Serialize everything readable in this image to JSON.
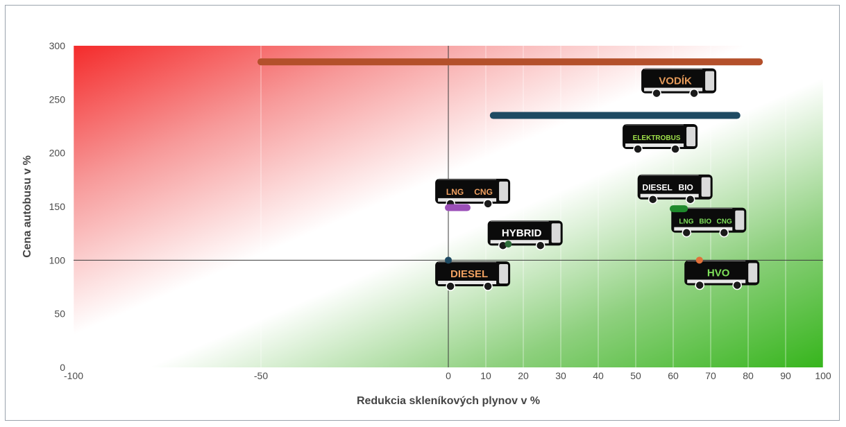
{
  "chart_data": {
    "type": "scatter",
    "xlabel": "Redukcia skleníkových plynov v %",
    "ylabel": "Cena autobusu v %",
    "xlim": [
      -100,
      100
    ],
    "ylim": [
      0,
      300
    ],
    "x_ticks": [
      -100,
      -50,
      0,
      10,
      20,
      30,
      40,
      50,
      60,
      70,
      80,
      90,
      100
    ],
    "y_ticks": [
      0,
      50,
      100,
      150,
      200,
      250,
      300
    ],
    "reference_lines": {
      "x": 0,
      "y": 100
    },
    "background": "gradient from red (top-left) through white to green (bottom-right)",
    "ranges": [
      {
        "label": "VODÍK",
        "x": [
          -50,
          83
        ],
        "y": 285,
        "color": "#b4502b"
      },
      {
        "label": "ELEKTROBUS",
        "x": [
          12,
          77
        ],
        "y": 235,
        "color": "#1e4a62"
      },
      {
        "label": "LNG CNG",
        "x": [
          0,
          5
        ],
        "y": 149,
        "color": "#9b4fb8"
      },
      {
        "label": "BIO LNG CNG",
        "x": [
          60,
          63
        ],
        "y": 148,
        "color": "#1f8a2c"
      }
    ],
    "points": [
      {
        "label": "DIESEL",
        "x": 0,
        "y": 100,
        "color": "#1e4a62"
      },
      {
        "label": "HYBRID",
        "x": 16,
        "y": 115,
        "color": "#2e6b3a"
      },
      {
        "label": "HVO",
        "x": 67,
        "y": 100,
        "color": "#e0703a"
      }
    ],
    "bus_labels": [
      {
        "id": "vodik",
        "parts": [
          "VODÍK"
        ],
        "x": 61.5,
        "y": 266,
        "colors": [
          "#e59a5a"
        ]
      },
      {
        "id": "elektrobus",
        "parts": [
          "ELEKTROBUS"
        ],
        "x": 56.5,
        "y": 214,
        "colors": [
          "#9fe04a"
        ]
      },
      {
        "id": "diesel-bio",
        "parts": [
          "DIESEL",
          "BIO"
        ],
        "x": 60.5,
        "y": 167,
        "colors": [
          "#ffffff",
          "#ffffff"
        ]
      },
      {
        "id": "lng-cng-bio",
        "parts": [
          "LNG",
          "BIO",
          "CNG"
        ],
        "x": 69.5,
        "y": 136,
        "colors": [
          "#7ee05a",
          "#7ee05a",
          "#7ee05a"
        ]
      },
      {
        "id": "lng-cng",
        "parts": [
          "LNG",
          "CNG"
        ],
        "x": 6.5,
        "y": 163,
        "colors": [
          "#f0a060",
          "#f0a060"
        ]
      },
      {
        "id": "hybrid",
        "parts": [
          "HYBRID"
        ],
        "x": 20.5,
        "y": 124,
        "colors": [
          "#ffffff"
        ]
      },
      {
        "id": "diesel",
        "parts": [
          "DIESEL"
        ],
        "x": 6.5,
        "y": 86,
        "colors": [
          "#f0a060"
        ]
      },
      {
        "id": "hvo",
        "parts": [
          "HVO"
        ],
        "x": 73,
        "y": 87,
        "colors": [
          "#7ee05a"
        ]
      }
    ]
  }
}
